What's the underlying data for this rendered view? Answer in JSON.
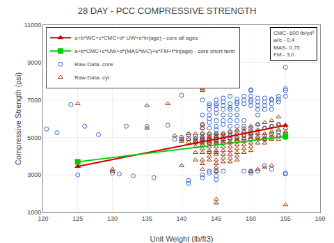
{
  "chart_data": {
    "type": "scatter",
    "title": "28 DAY - PCC COMPRESSIVE STRENGTH",
    "xlabel": "Unit Weight (lb/ft3)",
    "ylabel": "Compressive Strength (psi)",
    "xlim": [
      120,
      160
    ],
    "ylim": [
      1000,
      11000
    ],
    "xticks": [
      120,
      125,
      130,
      135,
      140,
      145,
      150,
      155,
      160
    ],
    "yticks": [
      1000,
      3000,
      5000,
      7000,
      9000,
      11000
    ],
    "grid": true,
    "legend": "upper left",
    "annotation": "CMC- 600 lb/yd³\nw/c - 0.4\nMAS- 0.75\nFM - 3.0",
    "series": [
      {
        "name": "a+b*WC+c*CMC+d* UW+e*ln(age) - core all ages",
        "type": "line",
        "color": "#CC0000",
        "marker": "triangle-up",
        "x": [
          125,
          155
        ],
        "values": [
          3450,
          5650
        ]
      },
      {
        "name": "a+b*CMC+c*UW+d*(MAS*WC)+e*FM+f*ln(age) - core short term",
        "type": "line",
        "color": "#00CC00",
        "marker": "square",
        "x": [
          125,
          155
        ],
        "values": [
          3700,
          5050
        ]
      },
      {
        "name": "Raw Data- core",
        "type": "scatter",
        "color": "#3366CC",
        "marker": "circle-open",
        "x": [
          120.5,
          122,
          124,
          125,
          126,
          128,
          130,
          131,
          132,
          133,
          135,
          136,
          138,
          139,
          140,
          140,
          140,
          141,
          141,
          141,
          141,
          142,
          142,
          142,
          142,
          143,
          143,
          143,
          143,
          143,
          143,
          143,
          143,
          143,
          143,
          144,
          144,
          144,
          144,
          144,
          144,
          144,
          144,
          144,
          144,
          144,
          144,
          144,
          144,
          144,
          145,
          145,
          145,
          145,
          145,
          145,
          145,
          145,
          145,
          145,
          145,
          145,
          145,
          145,
          145,
          145,
          145,
          146,
          146,
          146,
          146,
          146,
          146,
          146,
          146,
          146,
          146,
          146,
          147,
          147,
          147,
          147,
          147,
          147,
          147,
          147,
          147,
          147,
          148,
          148,
          148,
          148,
          148,
          148,
          148,
          148,
          148,
          148,
          149,
          149,
          149,
          149,
          149,
          149,
          149,
          149,
          149,
          150,
          150,
          150,
          150,
          150,
          150,
          150,
          150,
          150,
          150,
          150,
          150,
          151,
          151,
          151,
          151,
          151,
          151,
          151,
          151,
          151,
          152,
          152,
          152,
          152,
          152,
          152,
          152,
          152,
          153,
          153,
          153,
          153,
          153,
          153,
          153,
          153,
          154,
          154,
          154,
          154,
          154,
          154,
          155,
          155,
          155,
          155,
          155,
          155,
          155,
          155,
          155
        ],
        "values": [
          5450,
          5250,
          6750,
          3000,
          5600,
          5150,
          3100,
          3050,
          5600,
          2950,
          5600,
          2850,
          5650,
          4900,
          4900,
          5000,
          7250,
          5150,
          4950,
          2700,
          2550,
          5050,
          4950,
          4800,
          4750,
          7000,
          6200,
          5700,
          5500,
          5200,
          5000,
          4900,
          4800,
          3000,
          2850,
          6800,
          6700,
          6500,
          6200,
          6000,
          5800,
          5500,
          5200,
          5050,
          4950,
          4900,
          4750,
          4700,
          3200,
          3100,
          7000,
          6800,
          6700,
          6500,
          6300,
          5900,
          5600,
          5400,
          5200,
          5100,
          5000,
          4900,
          4800,
          4700,
          3200,
          2950,
          2750,
          7100,
          6900,
          6700,
          6500,
          6200,
          5900,
          5700,
          5200,
          5100,
          4900,
          3200,
          7200,
          6800,
          6600,
          6500,
          6200,
          5900,
          5600,
          5300,
          5100,
          4950,
          7050,
          6900,
          6800,
          6500,
          6200,
          5900,
          5600,
          5300,
          5000,
          4800,
          7200,
          7000,
          6800,
          5900,
          5600,
          5300,
          5100,
          4900,
          3200,
          7550,
          7500,
          7200,
          7000,
          6900,
          6700,
          5500,
          5200,
          5100,
          4900,
          3200,
          3100,
          7100,
          6900,
          6700,
          6500,
          6200,
          5700,
          5300,
          5000,
          3200,
          7100,
          6900,
          6700,
          6500,
          5500,
          5100,
          4900,
          3500,
          7050,
          7000,
          6800,
          6500,
          5600,
          5200,
          5000,
          3300,
          7200,
          7050,
          6900,
          5700,
          5300,
          5100,
          8750,
          7600,
          7500,
          7200,
          5200,
          5100,
          5000,
          3100,
          3050
        ]
      },
      {
        "name": "Raw Data- cyl",
        "type": "scatter",
        "color": "#993300",
        "marker": "triangle-up-open",
        "x": [
          125,
          130,
          130,
          135,
          135,
          138,
          139,
          140,
          140,
          140,
          141,
          141,
          141,
          142,
          142,
          142,
          142,
          142,
          142,
          142,
          143,
          143,
          143,
          143,
          143,
          143,
          143,
          143,
          143,
          143,
          143,
          143,
          143,
          143,
          144,
          144,
          144,
          144,
          144,
          144,
          144,
          144,
          144,
          144,
          145,
          145,
          145,
          145,
          145,
          145,
          145,
          145,
          145,
          145,
          145,
          145,
          145,
          145,
          145,
          146,
          146,
          146,
          146,
          146,
          146,
          146,
          146,
          146,
          146,
          147,
          147,
          147,
          147,
          147,
          147,
          147,
          147,
          147,
          147,
          148,
          148,
          148,
          148,
          148,
          148,
          148,
          148,
          148,
          148,
          149,
          149,
          149,
          149,
          149,
          149,
          149,
          149,
          150,
          150,
          150,
          150,
          150,
          150,
          150,
          150,
          150,
          151,
          151,
          151,
          151,
          151,
          151,
          151,
          152,
          152,
          152,
          152,
          152,
          152,
          152,
          153,
          153,
          153,
          153,
          153,
          153,
          154,
          154,
          154,
          154,
          154,
          155,
          155,
          155
        ],
        "values": [
          6800,
          3300,
          3200,
          5500,
          6700,
          6800,
          5100,
          4900,
          4800,
          3500,
          5200,
          4900,
          4750,
          5200,
          4950,
          4800,
          4700,
          4500,
          4200,
          3800,
          7600,
          7500,
          5700,
          5500,
          5200,
          5000,
          4900,
          4700,
          4600,
          4400,
          4200,
          3800,
          3600,
          3300,
          5200,
          5000,
          4900,
          4800,
          4700,
          4500,
          4300,
          4200,
          4000,
          3800,
          5200,
          5050,
          4950,
          4800,
          4700,
          4500,
          4300,
          4200,
          4100,
          3800,
          3600,
          3400,
          3200,
          1700,
          1500,
          5200,
          5000,
          4900,
          4800,
          4700,
          4500,
          4300,
          4100,
          3900,
          3700,
          5300,
          5100,
          4950,
          4800,
          4700,
          4500,
          4300,
          4100,
          3900,
          3700,
          5400,
          5200,
          5000,
          4900,
          4800,
          4600,
          4400,
          4200,
          4000,
          3800,
          5500,
          5300,
          5100,
          4950,
          4800,
          4600,
          4400,
          4200,
          5600,
          5400,
          5200,
          5000,
          4900,
          4700,
          4500,
          4300,
          3200,
          5700,
          5400,
          5200,
          5000,
          4900,
          4700,
          3300,
          5800,
          5500,
          5200,
          5000,
          4900,
          4700,
          3400,
          5900,
          5600,
          5300,
          5100,
          4900,
          3500,
          6100,
          5700,
          5400,
          5100,
          4900,
          5500,
          5300,
          1400
        ]
      }
    ]
  }
}
